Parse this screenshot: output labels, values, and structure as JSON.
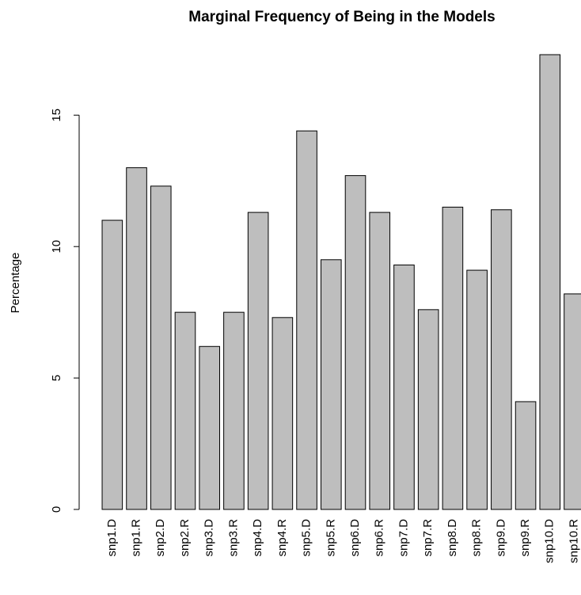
{
  "chart_data": {
    "type": "bar",
    "title": "Marginal Frequency of Being in the Models",
    "y_label": "Percentage",
    "categories": [
      "snp1.D",
      "snp1.R",
      "snp2.D",
      "snp2.R",
      "snp3.D",
      "snp3.R",
      "snp4.D",
      "snp4.R",
      "snp5.D",
      "snp5.R",
      "snp6.D",
      "snp6.R",
      "snp7.D",
      "snp7.R",
      "snp8.D",
      "snp8.R",
      "snp9.D",
      "snp9.R",
      "snp10.D",
      "snp10.R"
    ],
    "values": [
      11.0,
      13.0,
      12.3,
      7.5,
      6.2,
      7.5,
      11.3,
      7.3,
      14.4,
      9.5,
      12.7,
      11.3,
      9.3,
      7.6,
      11.5,
      9.1,
      11.4,
      4.1,
      17.3,
      8.2
    ],
    "color": "#bebebe",
    "ylim": [
      0,
      17.3
    ],
    "yticks": [
      0,
      5,
      10,
      15
    ],
    "grid": false
  }
}
